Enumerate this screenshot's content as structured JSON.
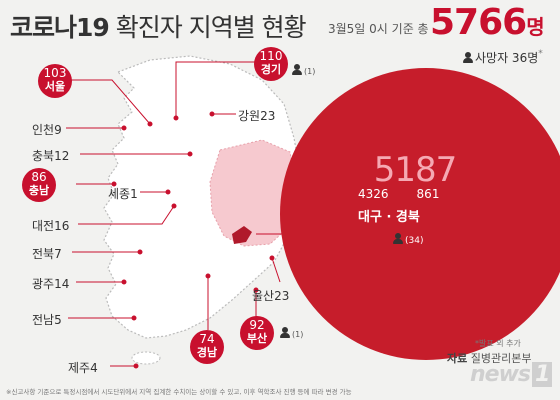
{
  "header": {
    "title_part1": "코로나19",
    "title_part2": " 확진자 지역별 현황",
    "date_text": "3월5일 0시 기준 총",
    "total": "5766",
    "total_unit": "명",
    "deaths_text": "사망자 36명",
    "deaths_mark": "*"
  },
  "regions": {
    "seoul": {
      "count": "103",
      "name": "서울"
    },
    "gyeonggi": {
      "count": "110",
      "name": "경기",
      "deaths": "(1)"
    },
    "gangwon": {
      "text": "강원23"
    },
    "incheon": {
      "text": "인천9"
    },
    "chungbuk": {
      "text": "충북12"
    },
    "chungnam": {
      "count": "86",
      "name": "충남"
    },
    "sejong": {
      "text": "세종1"
    },
    "daejeon": {
      "text": "대전16"
    },
    "jeonbuk": {
      "text": "전북7"
    },
    "gwangju": {
      "text": "광주14"
    },
    "jeonnam": {
      "text": "전남5"
    },
    "jeju": {
      "text": "제주4"
    },
    "gyeongnam": {
      "count": "74",
      "name": "경남"
    },
    "busan": {
      "count": "92",
      "name": "부산",
      "deaths": "(1)"
    },
    "ulsan": {
      "text": "울산23"
    }
  },
  "daegu_gyeongbuk": {
    "total": "5187",
    "daegu_count": "4326",
    "gyeongbuk_count": "861",
    "names": "대구 · 경북",
    "deaths": "(34)"
  },
  "footer": {
    "note": "*발표 외 추가",
    "source_label": "자료",
    "source_value": " 질병관리본부",
    "logo": "news",
    "logo_mark": "1",
    "disclaimer": "※신고사항 기준으로 특정시점에서 시도단위에서 지역 집계한 수치이는 상이할 수 있고, 이후 역학조사 진행 등에 따라 변경 가능"
  },
  "colors": {
    "accent": "#c8102e",
    "circle": "#c61d2b",
    "map_fill": "#ffffff",
    "map_highlight": "#f6c9cf"
  }
}
